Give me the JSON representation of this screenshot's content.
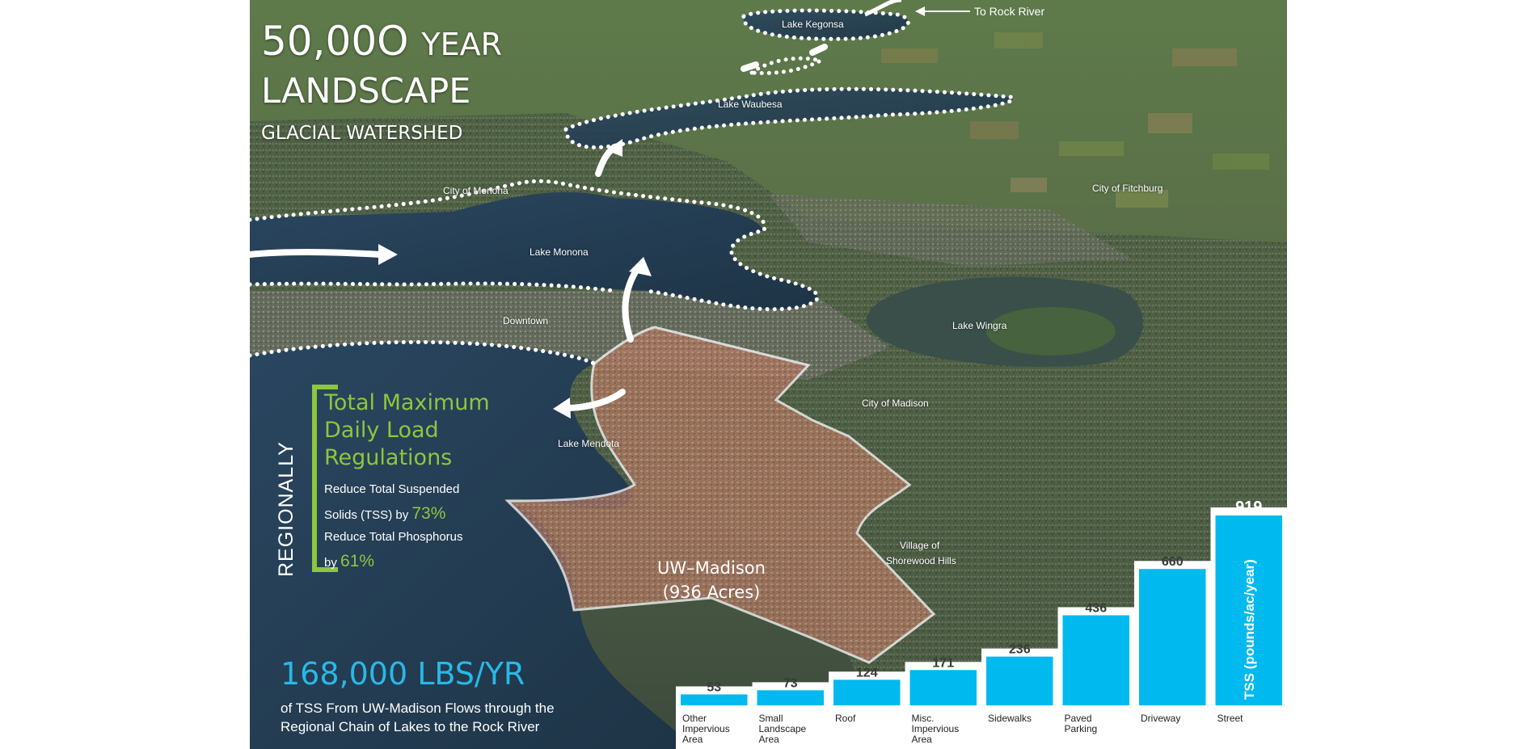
{
  "title": {
    "number": "50,00O",
    "year": "YEAR",
    "landscape": "LANDSCAPE",
    "subtitle": "GLACIAL WATERSHED"
  },
  "places": {
    "to_rock_river": "To Rock River",
    "lake_kegonsa": "Lake Kegonsa",
    "lake_waubesa": "Lake Waubesa",
    "city_of_monona": "City of Monona",
    "city_of_fitchburg": "City of Fitchburg",
    "lake_monona": "Lake Monona",
    "downtown": "Downtown",
    "lake_wingra": "Lake Wingra",
    "city_of_madison": "City of Madison",
    "lake_mendota": "Lake Mendota",
    "village_line1": "Village of",
    "village_line2": "Shorewood Hills"
  },
  "campus": {
    "name": "UW–Madison",
    "acres": "(936 Acres)"
  },
  "regulations": {
    "vertical_label": "REGIONALLY",
    "title": "Total Maximum Daily Load Regulations",
    "tss_line1": "Reduce Total Suspended",
    "tss_line2": "Solids (TSS) by",
    "tss_pct": "73%",
    "phos_line1": "Reduce Total Phosphorus",
    "phos_line2": "by",
    "phos_pct": "61%"
  },
  "stat": {
    "value": "168,000 LBS/YR",
    "description": "of TSS From UW-Madison Flows through the Regional Chain of Lakes to the Rock River"
  },
  "colors": {
    "accent_green": "#8dc63f",
    "accent_blue": "#29b8e8",
    "bar_fill": "#00b9ef",
    "campus_fill": "#c8826b"
  },
  "chart_data": {
    "type": "bar",
    "ylabel": "TSS (pounds/ac/year)",
    "categories": [
      "Other Impervious Area",
      "Small Landscape Area",
      "Roof",
      "Misc. Impervious Area",
      "Sidewalks",
      "Paved Parking",
      "Driveway",
      "Street"
    ],
    "values": [
      53,
      73,
      124,
      171,
      236,
      436,
      660,
      919
    ],
    "value_labels": [
      "53",
      "73",
      "124",
      "171",
      "236",
      "436",
      "660",
      "919"
    ],
    "ylim": [
      0,
      919
    ],
    "grid": false,
    "legend": "none"
  }
}
